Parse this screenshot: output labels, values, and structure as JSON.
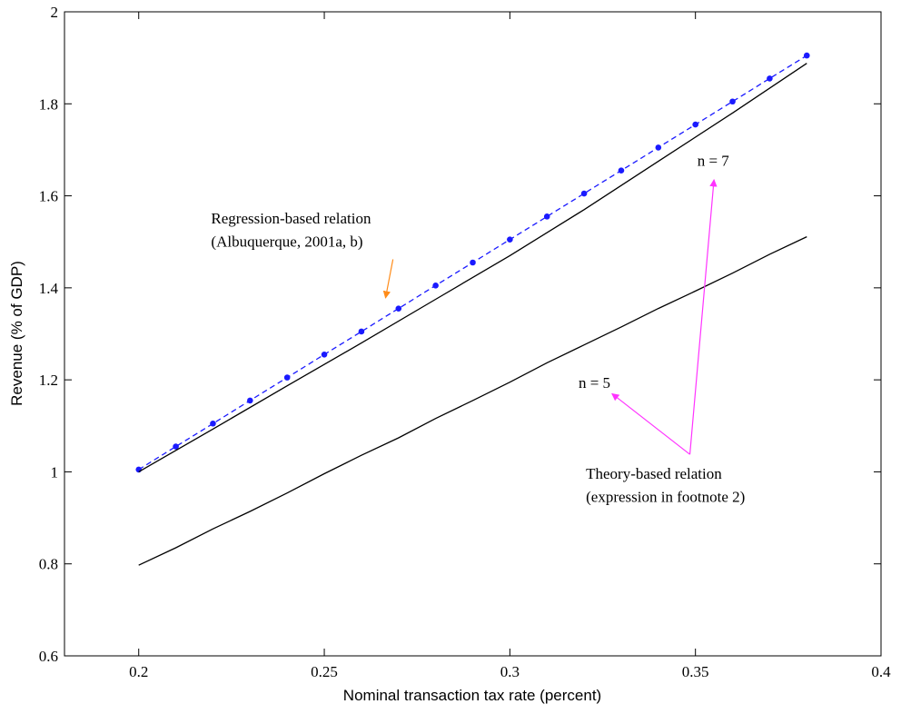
{
  "chart_data": {
    "type": "line",
    "title": "",
    "xlabel": "Nominal transaction tax rate (percent)",
    "ylabel": "Revenue  (% of GDP)",
    "xlim": [
      0.18,
      0.4
    ],
    "ylim": [
      0.6,
      2.0
    ],
    "xticks": [
      0.2,
      0.25,
      0.3,
      0.35,
      0.4
    ],
    "xtick_labels": [
      "0.2",
      "0.25",
      "0.3",
      "0.35",
      "0.4"
    ],
    "yticks": [
      0.6,
      0.8,
      1.0,
      1.2,
      1.4,
      1.6,
      1.8,
      2.0
    ],
    "ytick_labels": [
      "0.6",
      "0.8",
      "1",
      "1.2",
      "1.4",
      "1.6",
      "1.8",
      "2"
    ],
    "grid": false,
    "series": [
      {
        "style": "dashed",
        "color": "#1a1aff",
        "marker": "dot",
        "x": [
          0.2,
          0.21,
          0.22,
          0.23,
          0.24,
          0.25,
          0.26,
          0.27,
          0.28,
          0.29,
          0.3,
          0.31,
          0.32,
          0.33,
          0.34,
          0.35,
          0.36,
          0.37,
          0.38
        ],
        "y": [
          1.005,
          1.055,
          1.105,
          1.155,
          1.205,
          1.255,
          1.305,
          1.355,
          1.405,
          1.455,
          1.505,
          1.555,
          1.605,
          1.655,
          1.705,
          1.755,
          1.805,
          1.855,
          1.905
        ]
      },
      {
        "style": "solid",
        "color": "#000000",
        "x": [
          0.2,
          0.22,
          0.24,
          0.26,
          0.28,
          0.3,
          0.32,
          0.34,
          0.36,
          0.38
        ],
        "y": [
          1.0,
          1.093,
          1.187,
          1.28,
          1.375,
          1.47,
          1.57,
          1.675,
          1.78,
          1.888
        ]
      },
      {
        "style": "solid",
        "color": "#000000",
        "x": [
          0.2,
          0.21,
          0.22,
          0.23,
          0.24,
          0.25,
          0.26,
          0.27,
          0.28,
          0.29,
          0.3,
          0.31,
          0.32,
          0.33,
          0.34,
          0.35,
          0.36,
          0.37,
          0.38
        ],
        "y": [
          0.797,
          0.835,
          0.876,
          0.914,
          0.954,
          0.996,
          1.036,
          1.074,
          1.116,
          1.155,
          1.195,
          1.237,
          1.276,
          1.315,
          1.355,
          1.393,
          1.432,
          1.473,
          1.511
        ]
      }
    ],
    "annotations": [
      {
        "lines": [
          "Regression-based relation",
          "(Albuquerque, 2001a, b)"
        ],
        "text_x": 0.2195,
        "text_y": [
          1.54,
          1.49
        ],
        "arrows": [
          {
            "from": [
              0.2685,
              1.462
            ],
            "to": [
              0.2665,
              1.378
            ],
            "color": "#ff8c1a"
          }
        ]
      },
      {
        "lines": [
          "Theory-based relation",
          "(expression in footnote 2)"
        ],
        "text_x": 0.3205,
        "text_y": [
          0.985,
          0.935
        ],
        "arrows": [
          {
            "from": [
              0.3485,
              1.038
            ],
            "to": [
              0.3275,
              1.17
            ],
            "color": "#ff33ff"
          },
          {
            "from": [
              0.3485,
              1.038
            ],
            "to": [
              0.355,
              1.635
            ],
            "color": "#ff33ff"
          }
        ]
      },
      {
        "lines": [
          "n = 7"
        ],
        "text_x": 0.3505,
        "text_y": [
          1.665
        ],
        "arrows": []
      },
      {
        "lines": [
          "n = 5"
        ],
        "text_x": 0.3185,
        "text_y": [
          1.183
        ],
        "arrows": []
      }
    ]
  }
}
